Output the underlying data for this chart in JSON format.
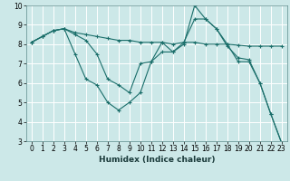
{
  "xlabel": "Humidex (Indice chaleur)",
  "bg_color": "#cce8e8",
  "grid_color": "#ffffff",
  "line_color": "#1a6e6a",
  "series": [
    {
      "x": [
        0,
        1,
        2,
        3,
        4,
        5,
        6,
        7,
        8,
        9,
        10,
        11,
        12,
        13,
        14,
        15,
        16,
        17,
        18,
        19,
        20,
        21,
        22,
        23
      ],
      "y": [
        8.1,
        8.4,
        8.7,
        8.8,
        8.6,
        8.5,
        8.4,
        8.3,
        8.2,
        8.2,
        8.1,
        8.1,
        8.1,
        8.0,
        8.1,
        8.1,
        8.0,
        8.0,
        8.0,
        7.95,
        7.9,
        7.9,
        7.9,
        7.9
      ]
    },
    {
      "x": [
        0,
        1,
        2,
        3,
        4,
        5,
        6,
        7,
        8,
        9,
        10,
        11,
        12,
        13,
        14,
        15,
        16,
        17,
        18,
        19,
        20,
        21,
        22,
        23
      ],
      "y": [
        8.1,
        8.4,
        8.7,
        8.8,
        7.5,
        6.2,
        5.9,
        5.0,
        4.6,
        5.0,
        5.5,
        7.1,
        8.1,
        7.6,
        8.0,
        10.0,
        9.3,
        8.8,
        8.0,
        7.1,
        7.1,
        6.0,
        4.4,
        2.9
      ]
    },
    {
      "x": [
        0,
        1,
        2,
        3,
        4,
        5,
        6,
        7,
        8,
        9,
        10,
        11,
        12,
        13,
        14,
        15,
        16,
        17,
        18,
        19,
        20,
        21,
        22,
        23
      ],
      "y": [
        8.1,
        8.4,
        8.7,
        8.8,
        8.5,
        8.2,
        7.5,
        6.2,
        5.9,
        5.5,
        7.0,
        7.1,
        7.6,
        7.6,
        8.1,
        9.3,
        9.3,
        8.8,
        7.9,
        7.3,
        7.2,
        6.0,
        4.4,
        2.9
      ]
    }
  ],
  "xlim": [
    -0.5,
    23.5
  ],
  "ylim": [
    3,
    10
  ],
  "xticks": [
    0,
    1,
    2,
    3,
    4,
    5,
    6,
    7,
    8,
    9,
    10,
    11,
    12,
    13,
    14,
    15,
    16,
    17,
    18,
    19,
    20,
    21,
    22,
    23
  ],
  "yticks": [
    3,
    4,
    5,
    6,
    7,
    8,
    9,
    10
  ],
  "tick_fontsize": 5.5,
  "xlabel_fontsize": 6.5,
  "marker_size": 3,
  "linewidth": 0.8
}
